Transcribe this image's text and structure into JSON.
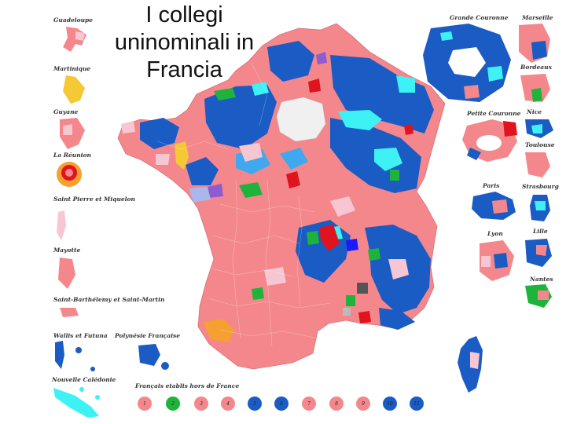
{
  "title": "I collegi uninominali in Francia",
  "title_lines": [
    "I collegi",
    "uninominali in",
    "Francia"
  ],
  "colors": {
    "salmon": "#f4878b",
    "dark_blue": "#1a5bc4",
    "light_blue": "#3fa8ef",
    "cyan": "#3ef1f5",
    "red": "#e0141e",
    "pink": "#f7c6d3",
    "purple": "#8e5bd0",
    "green": "#1eb43c",
    "yellow": "#f5c836",
    "orange": "#f5a030",
    "grey": "#f0f0f0",
    "lavender": "#a9b7ea"
  },
  "insets_left": [
    {
      "label": "Guadeloupe",
      "icon": "guadeloupe-shape"
    },
    {
      "label": "Martinique",
      "icon": "martinique-shape"
    },
    {
      "label": "Guyane",
      "icon": "guyane-shape"
    },
    {
      "label": "La Réunion",
      "icon": "reunion-shape"
    },
    {
      "label": "Saint Pierre et Miquelon",
      "icon": "saint-pierre-shape"
    },
    {
      "label": "Mayotte",
      "icon": "mayotte-shape"
    },
    {
      "label": "Saint-Barthélemy et Saint-Martin",
      "icon": "saint-barthelemy-shape"
    },
    {
      "label": "Wallis et Futuna",
      "icon": "wallis-shape"
    },
    {
      "label": "Polynésie Française",
      "icon": "polynesie-shape"
    },
    {
      "label": "Nouvelle Calédonie",
      "icon": "nouvelle-caledonie-shape"
    },
    {
      "label": "Français etablis hors de France",
      "icon": "abroad-shape"
    }
  ],
  "insets_right": [
    {
      "label": "Grande Couronne"
    },
    {
      "label": "Marseille"
    },
    {
      "label": "Bordeaux"
    },
    {
      "label": "Petite Couronne"
    },
    {
      "label": "Nice"
    },
    {
      "label": "Toulouse"
    },
    {
      "label": "Paris"
    },
    {
      "label": "Strasbourg"
    },
    {
      "label": "Lyon"
    },
    {
      "label": "Lille"
    },
    {
      "label": "Nantes"
    }
  ],
  "legend": [
    {
      "label": "1",
      "color": "#f4878b"
    },
    {
      "label": "2",
      "color": "#1eb43c"
    },
    {
      "label": "3",
      "color": "#f4878b"
    },
    {
      "label": "4",
      "color": "#f4878b"
    },
    {
      "label": "5",
      "color": "#1a5bc4"
    },
    {
      "label": "6",
      "color": "#1a5bc4"
    },
    {
      "label": "7",
      "color": "#f4878b"
    },
    {
      "label": "8",
      "color": "#f4878b"
    },
    {
      "label": "9",
      "color": "#f4878b"
    },
    {
      "label": "10",
      "color": "#1a5bc4"
    },
    {
      "label": "11",
      "color": "#1a5bc4"
    }
  ]
}
